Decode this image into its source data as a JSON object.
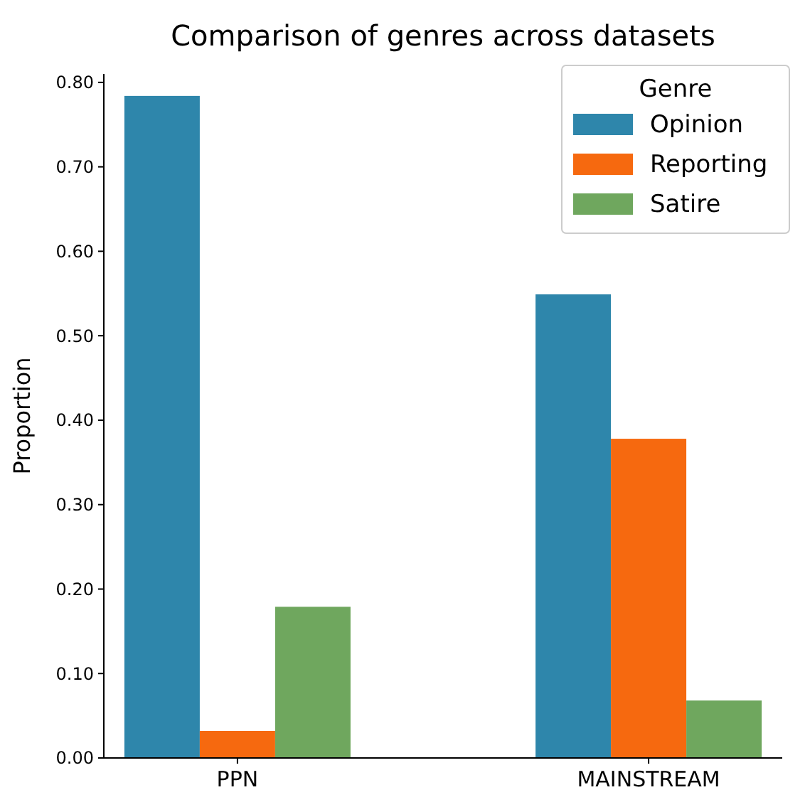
{
  "chart_data": {
    "type": "bar",
    "title": "Comparison of genres across datasets",
    "ylabel": "Proportion",
    "legend_title": "Genre",
    "categories": [
      "PPN",
      "MAINSTREAM"
    ],
    "series": [
      {
        "name": "Opinion",
        "color": "#2e86ab",
        "values": [
          0.784,
          0.549
        ]
      },
      {
        "name": "Reporting",
        "color": "#f6690f",
        "values": [
          0.032,
          0.378
        ]
      },
      {
        "name": "Satire",
        "color": "#6fa75e",
        "values": [
          0.179,
          0.068
        ]
      }
    ],
    "ylim": [
      0,
      0.81
    ],
    "yticks": [
      {
        "value": 0,
        "label": "0.00"
      },
      {
        "value": 0.1,
        "label": "0.10"
      },
      {
        "value": 0.2,
        "label": "0.20"
      },
      {
        "value": 0.3,
        "label": "0.30"
      },
      {
        "value": 0.4,
        "label": "0.40"
      },
      {
        "value": 0.5,
        "label": "0.50"
      },
      {
        "value": 0.6,
        "label": "0.60"
      },
      {
        "value": 0.7,
        "label": "0.70"
      },
      {
        "value": 0.8,
        "label": "0.80"
      }
    ],
    "grid": false,
    "legend": "top right"
  }
}
